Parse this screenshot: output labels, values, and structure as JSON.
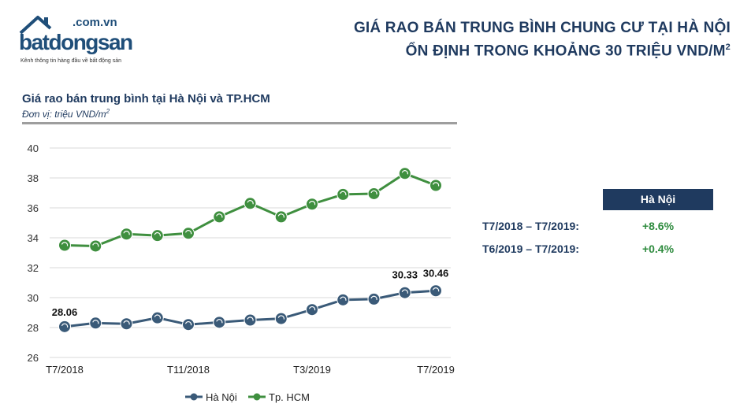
{
  "logo": {
    "suffix": ".com.vn",
    "brand": "batdongsan",
    "tagline": "Kênh thông tin hàng đầu về bất động sản"
  },
  "header": {
    "line1": "GIÁ RAO BÁN TRUNG BÌNH CHUNG CƯ TẠI HÀ NỘI",
    "line2": "ỔN ĐỊNH TRONG KHOẢNG 30 TRIỆU VND/M",
    "line2_sup": "2"
  },
  "chart_data": {
    "type": "line",
    "title": "Giá rao bán trung bình tại Hà Nội và TP.HCM",
    "unit": "Đơn vị: triệu VND/m",
    "unit_sup": "2",
    "x_ticks": [
      "T7/2018",
      "T11/2018",
      "T3/2019",
      "T7/2019"
    ],
    "x_tick_index": [
      0,
      4,
      8,
      12
    ],
    "y_ticks": [
      26,
      28,
      30,
      32,
      34,
      36,
      38,
      40
    ],
    "ylim": [
      26,
      40
    ],
    "grid": true,
    "legend_position": "bottom",
    "series": [
      {
        "name": "Hà Nội",
        "color": "#3a5a78",
        "values": [
          28.06,
          28.3,
          28.25,
          28.65,
          28.2,
          28.35,
          28.5,
          28.6,
          29.2,
          29.85,
          29.9,
          30.33,
          30.46
        ],
        "labels": [
          {
            "index": 0,
            "text": "28.06"
          },
          {
            "index": 11,
            "text": "30.33"
          },
          {
            "index": 12,
            "text": "30.46"
          }
        ]
      },
      {
        "name": "Tp. HCM",
        "color": "#3f8f3f",
        "values": [
          33.5,
          33.45,
          34.25,
          34.15,
          34.3,
          35.4,
          36.3,
          35.4,
          36.25,
          36.9,
          36.95,
          38.3,
          37.5
        ],
        "labels": []
      }
    ]
  },
  "table": {
    "header": "Hà Nội",
    "rows": [
      {
        "label": "T7/2018 – T7/2019:",
        "value": "+8.6%"
      },
      {
        "label": "T6/2019 – T7/2019:",
        "value": "+0.4%"
      }
    ]
  }
}
